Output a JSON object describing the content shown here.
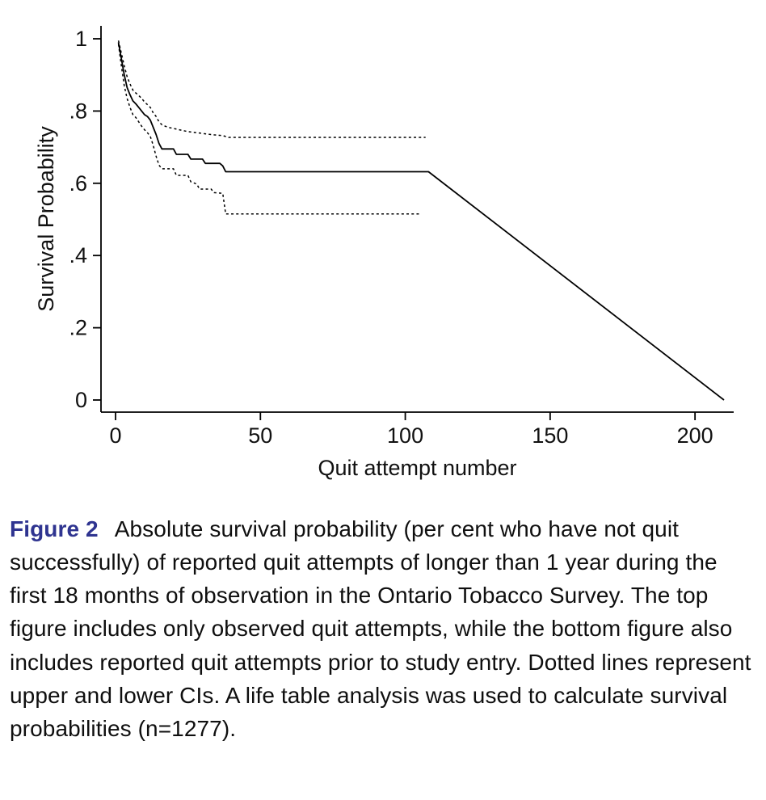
{
  "colors": {
    "figure_label": "#2f3490",
    "line": "#000000",
    "axis": "#000000",
    "background": "#ffffff"
  },
  "caption": {
    "label": "Figure 2",
    "text": "Absolute survival probability (per cent who have not quit successfully) of reported quit attempts of longer than 1 year during the first 18 months of observation in the Ontario Tobacco Survey. The top figure includes only observed quit attempts, while the bottom figure also includes reported quit attempts prior to study entry. Dotted lines represent upper and lower CIs. A life table analysis was used to calculate survival probabilities (n=1277)."
  },
  "chart_data": {
    "type": "line",
    "title": "",
    "xlabel": "Quit attempt number",
    "ylabel": "Survival Probability",
    "xlim": [
      0,
      210
    ],
    "ylim": [
      0,
      1
    ],
    "grid": false,
    "legend_position": "none",
    "x_ticks": [
      {
        "value": 0,
        "label": "0"
      },
      {
        "value": 50,
        "label": "50"
      },
      {
        "value": 100,
        "label": "100"
      },
      {
        "value": 150,
        "label": "150"
      },
      {
        "value": 200,
        "label": "200"
      }
    ],
    "y_ticks": [
      {
        "value": 0,
        "label": "0"
      },
      {
        "value": 0.2,
        "label": ".2"
      },
      {
        "value": 0.4,
        "label": ".4"
      },
      {
        "value": 0.6,
        "label": ".6"
      },
      {
        "value": 0.8,
        "label": ".8"
      },
      {
        "value": 1,
        "label": "1"
      }
    ],
    "series": [
      {
        "name": "survival-estimate",
        "style": "solid",
        "points": [
          [
            1,
            0.99
          ],
          [
            2,
            0.945
          ],
          [
            3,
            0.9
          ],
          [
            4,
            0.865
          ],
          [
            5,
            0.845
          ],
          [
            6,
            0.828
          ],
          [
            7,
            0.82
          ],
          [
            8,
            0.81
          ],
          [
            9,
            0.8
          ],
          [
            10,
            0.79
          ],
          [
            11,
            0.785
          ],
          [
            12,
            0.775
          ],
          [
            13,
            0.755
          ],
          [
            14,
            0.735
          ],
          [
            15,
            0.71
          ],
          [
            16,
            0.695
          ],
          [
            20,
            0.695
          ],
          [
            21,
            0.68
          ],
          [
            25,
            0.68
          ],
          [
            26,
            0.667
          ],
          [
            30,
            0.667
          ],
          [
            31,
            0.655
          ],
          [
            36,
            0.655
          ],
          [
            37,
            0.648
          ],
          [
            38,
            0.632
          ],
          [
            108,
            0.632
          ],
          [
            210,
            0
          ]
        ]
      },
      {
        "name": "upper-ci",
        "style": "dashed",
        "points": [
          [
            1,
            0.995
          ],
          [
            2,
            0.96
          ],
          [
            3,
            0.925
          ],
          [
            4,
            0.895
          ],
          [
            5,
            0.875
          ],
          [
            6,
            0.858
          ],
          [
            7,
            0.85
          ],
          [
            8,
            0.843
          ],
          [
            9,
            0.835
          ],
          [
            10,
            0.825
          ],
          [
            11,
            0.818
          ],
          [
            12,
            0.81
          ],
          [
            13,
            0.795
          ],
          [
            14,
            0.785
          ],
          [
            15,
            0.77
          ],
          [
            16,
            0.762
          ],
          [
            18,
            0.755
          ],
          [
            20,
            0.752
          ],
          [
            22,
            0.748
          ],
          [
            25,
            0.743
          ],
          [
            28,
            0.74
          ],
          [
            31,
            0.737
          ],
          [
            34,
            0.734
          ],
          [
            37,
            0.732
          ],
          [
            39,
            0.727
          ],
          [
            107,
            0.727
          ]
        ]
      },
      {
        "name": "lower-ci",
        "style": "dashed",
        "points": [
          [
            1,
            0.985
          ],
          [
            2,
            0.925
          ],
          [
            3,
            0.87
          ],
          [
            4,
            0.835
          ],
          [
            5,
            0.81
          ],
          [
            6,
            0.79
          ],
          [
            7,
            0.782
          ],
          [
            8,
            0.77
          ],
          [
            9,
            0.758
          ],
          [
            10,
            0.748
          ],
          [
            11,
            0.74
          ],
          [
            12,
            0.73
          ],
          [
            13,
            0.705
          ],
          [
            14,
            0.675
          ],
          [
            15,
            0.65
          ],
          [
            16,
            0.64
          ],
          [
            20,
            0.64
          ],
          [
            21,
            0.622
          ],
          [
            25,
            0.622
          ],
          [
            26,
            0.604
          ],
          [
            28,
            0.598
          ],
          [
            29,
            0.584
          ],
          [
            33,
            0.584
          ],
          [
            34,
            0.574
          ],
          [
            37,
            0.572
          ],
          [
            38,
            0.515
          ],
          [
            105,
            0.515
          ]
        ]
      }
    ]
  }
}
